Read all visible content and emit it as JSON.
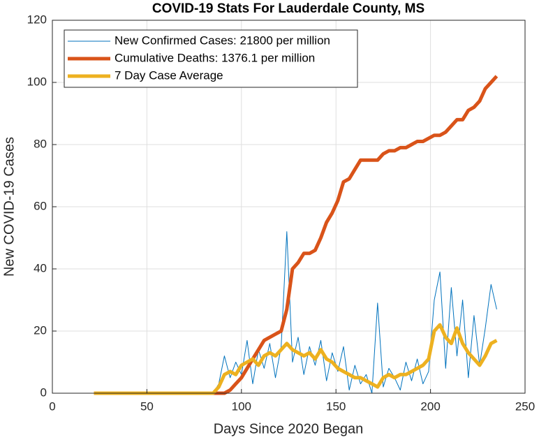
{
  "chart_data": {
    "type": "line",
    "title": "COVID-19 Stats For Lauderdale County, MS",
    "x_label": "Days Since 2020 Began",
    "y_label": "New COVID-19 Cases",
    "x": [
      22,
      25,
      28,
      31,
      34,
      37,
      40,
      43,
      46,
      49,
      52,
      55,
      58,
      61,
      64,
      67,
      70,
      73,
      76,
      79,
      82,
      85,
      88,
      91,
      94,
      97,
      100,
      103,
      106,
      109,
      112,
      115,
      118,
      121,
      124,
      127,
      130,
      133,
      136,
      139,
      142,
      145,
      148,
      151,
      154,
      157,
      160,
      163,
      166,
      169,
      172,
      175,
      178,
      181,
      184,
      187,
      190,
      193,
      196,
      199,
      202,
      205,
      208,
      211,
      214,
      217,
      220,
      223,
      226,
      229,
      232,
      235
    ],
    "series": [
      {
        "name": "New Confirmed Cases: 21800 per million",
        "color": "#0072BD",
        "width": 1,
        "values": [
          0,
          0,
          0,
          0,
          0,
          0,
          0,
          0,
          0,
          0,
          0,
          0,
          0,
          0,
          0,
          0,
          0,
          0,
          0,
          0,
          0,
          0,
          3,
          12,
          5,
          10,
          6,
          17,
          3,
          14,
          8,
          16,
          5,
          15,
          52,
          10,
          18,
          6,
          15,
          9,
          17,
          4,
          13,
          7,
          15,
          1,
          9,
          3,
          6,
          0,
          29,
          2,
          8,
          5,
          1,
          10,
          4,
          11,
          3,
          7,
          30,
          39,
          8,
          34,
          12,
          30,
          5,
          25,
          9,
          21,
          35,
          27
        ]
      },
      {
        "name": "Cumulative Deaths: 1376.1 per million",
        "color": "#D95319",
        "width": 5,
        "values": [
          0,
          0,
          0,
          0,
          0,
          0,
          0,
          0,
          0,
          0,
          0,
          0,
          0,
          0,
          0,
          0,
          0,
          0,
          0,
          0,
          0,
          0,
          0,
          0,
          1,
          3,
          5,
          8,
          11,
          14,
          17,
          18,
          19,
          20,
          27,
          40,
          42,
          45,
          45,
          46,
          50,
          55,
          58,
          62,
          68,
          69,
          72,
          75,
          75,
          75,
          75,
          77,
          78,
          78,
          79,
          79,
          80,
          81,
          81,
          82,
          83,
          83,
          84,
          86,
          88,
          88,
          91,
          92,
          94,
          98,
          100,
          102
        ]
      },
      {
        "name": "7 Day Case Average",
        "color": "#EDB120",
        "width": 5,
        "values": [
          0,
          0,
          0,
          0,
          0,
          0,
          0,
          0,
          0,
          0,
          0,
          0,
          0,
          0,
          0,
          0,
          0,
          0,
          0,
          0,
          0,
          0,
          2,
          6,
          7,
          6,
          9,
          10,
          11,
          9,
          12,
          13,
          12,
          14,
          16,
          14,
          13,
          12,
          13,
          11,
          14,
          11,
          10,
          8,
          7,
          6,
          5,
          5,
          4,
          3,
          2,
          5,
          6,
          5,
          6,
          6,
          7,
          8,
          9,
          11,
          20,
          22,
          18,
          16,
          21,
          16,
          13,
          11,
          9,
          12,
          16,
          17
        ]
      }
    ],
    "xlim": [
      0,
      250
    ],
    "xticks": [
      0,
      50,
      100,
      150,
      200,
      250
    ],
    "ylim": [
      0,
      120
    ],
    "yticks": [
      0,
      20,
      40,
      60,
      80,
      100,
      120
    ],
    "grid": true,
    "legend": "upper-left"
  }
}
